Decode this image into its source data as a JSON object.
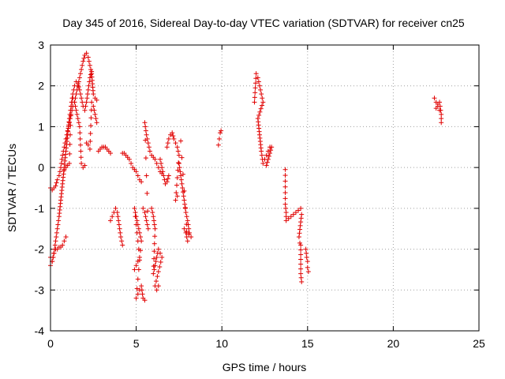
{
  "chart_data": {
    "type": "scatter",
    "title": "Day 345 of 2016, Sidereal Day-to-day VTEC variation (SDTVAR) for receiver cn25",
    "xlabel": "GPS time / hours",
    "ylabel": "SDTVAR / TECUs",
    "xlim": [
      0,
      25
    ],
    "ylim": [
      -4,
      3
    ],
    "xticks": [
      "0",
      "5",
      "10",
      "15",
      "20",
      "25"
    ],
    "yticks": [
      "-4",
      "-3",
      "-2",
      "-1",
      "0",
      "1",
      "2",
      "3"
    ],
    "marker": "+",
    "grid": true,
    "series": [
      {
        "name": "SDTVAR",
        "color": "#e00000",
        "segments": [
          [
            [
              0.0,
              -0.5
            ],
            [
              0.1,
              -0.55
            ],
            [
              0.2,
              -0.5
            ],
            [
              0.3,
              -0.45
            ],
            [
              0.4,
              -0.3
            ],
            [
              0.5,
              -0.2
            ],
            [
              0.6,
              0.0
            ],
            [
              0.7,
              0.3
            ],
            [
              0.8,
              0.5
            ],
            [
              0.9,
              0.7
            ],
            [
              1.0,
              0.9
            ],
            [
              1.1,
              1.1
            ],
            [
              1.2,
              1.3
            ],
            [
              1.3,
              1.5
            ],
            [
              1.4,
              1.6
            ],
            [
              1.5,
              1.8
            ],
            [
              1.6,
              2.0
            ],
            [
              1.7,
              2.2
            ],
            [
              1.8,
              2.4
            ],
            [
              1.9,
              2.6
            ],
            [
              2.0,
              2.75
            ],
            [
              2.1,
              2.8
            ],
            [
              2.2,
              2.7
            ],
            [
              2.3,
              2.5
            ],
            [
              2.4,
              2.3
            ],
            [
              2.5,
              1.8
            ],
            [
              2.6,
              1.7
            ],
            [
              2.7,
              1.65
            ]
          ],
          [
            [
              0.0,
              -2.2
            ],
            [
              0.1,
              -2.3
            ],
            [
              0.2,
              -2.1
            ],
            [
              0.3,
              -1.8
            ],
            [
              0.4,
              -1.5
            ],
            [
              0.5,
              -1.2
            ],
            [
              0.6,
              -0.8
            ],
            [
              0.7,
              -0.4
            ],
            [
              0.8,
              0.0
            ],
            [
              0.9,
              0.4
            ],
            [
              1.0,
              0.8
            ],
            [
              1.1,
              1.2
            ],
            [
              1.2,
              1.5
            ],
            [
              1.3,
              1.8
            ],
            [
              1.4,
              2.0
            ],
            [
              1.5,
              2.1
            ],
            [
              1.6,
              2.05
            ],
            [
              1.7,
              1.9
            ],
            [
              1.8,
              1.7
            ],
            [
              1.9,
              1.5
            ],
            [
              2.0,
              1.4
            ],
            [
              2.1,
              1.6
            ],
            [
              2.2,
              1.9
            ],
            [
              2.3,
              2.2
            ],
            [
              2.4,
              2.35
            ]
          ],
          [
            [
              0.0,
              -2.4
            ],
            [
              0.1,
              -2.3
            ],
            [
              0.2,
              -2.1
            ],
            [
              0.3,
              -2.0
            ],
            [
              0.4,
              -2.0
            ],
            [
              0.5,
              -1.95
            ],
            [
              0.6,
              -1.95
            ],
            [
              0.7,
              -1.9
            ],
            [
              0.8,
              -1.8
            ],
            [
              0.9,
              -1.7
            ]
          ],
          [
            [
              0.8,
              -0.05
            ],
            [
              0.9,
              0.0
            ],
            [
              1.0,
              0.05
            ],
            [
              1.1,
              0.1
            ],
            [
              1.2,
              1.5
            ],
            [
              1.3,
              1.7
            ],
            [
              1.4,
              1.6
            ],
            [
              1.5,
              1.4
            ],
            [
              1.6,
              1.2
            ],
            [
              1.7,
              1.0
            ],
            [
              1.8,
              0.1
            ],
            [
              1.9,
              0.0
            ],
            [
              2.0,
              0.05
            ]
          ],
          [
            [
              2.1,
              0.6
            ],
            [
              2.2,
              0.55
            ],
            [
              2.3,
              0.45
            ],
            [
              2.4,
              1.6
            ],
            [
              2.5,
              1.5
            ],
            [
              2.6,
              1.3
            ],
            [
              2.7,
              1.1
            ]
          ],
          [
            [
              2.8,
              0.4
            ],
            [
              2.9,
              0.45
            ],
            [
              3.0,
              0.5
            ],
            [
              3.1,
              0.5
            ],
            [
              3.2,
              0.5
            ],
            [
              3.3,
              0.45
            ],
            [
              3.4,
              0.4
            ],
            [
              3.5,
              0.35
            ]
          ],
          [
            [
              3.5,
              -1.3
            ],
            [
              3.6,
              -1.2
            ],
            [
              3.7,
              -1.1
            ],
            [
              3.8,
              -1.0
            ],
            [
              3.9,
              -1.1
            ],
            [
              4.0,
              -1.4
            ],
            [
              4.1,
              -1.7
            ],
            [
              4.2,
              -1.9
            ]
          ],
          [
            [
              4.2,
              0.35
            ],
            [
              4.3,
              0.35
            ],
            [
              4.4,
              0.3
            ],
            [
              4.5,
              0.25
            ],
            [
              4.6,
              0.2
            ],
            [
              4.7,
              0.1
            ],
            [
              4.8,
              0.0
            ],
            [
              4.9,
              -0.05
            ],
            [
              5.0,
              -0.1
            ],
            [
              5.1,
              -0.2
            ],
            [
              5.2,
              -0.3
            ],
            [
              5.3,
              -0.35
            ]
          ],
          [
            [
              4.9,
              -2.5
            ],
            [
              5.0,
              -2.4
            ],
            [
              5.1,
              -2.3
            ],
            [
              5.2,
              -2.2
            ],
            [
              4.9,
              -1.0
            ],
            [
              5.0,
              -1.2
            ],
            [
              5.1,
              -1.4
            ],
            [
              5.2,
              -1.6
            ],
            [
              5.3,
              -1.8
            ],
            [
              5.0,
              -3.2
            ],
            [
              5.1,
              -3.1
            ],
            [
              5.2,
              -3.0
            ],
            [
              5.3,
              -2.9
            ],
            [
              5.4,
              -3.2
            ],
            [
              5.5,
              -3.25
            ]
          ],
          [
            [
              5.4,
              -1.0
            ],
            [
              5.5,
              -1.1
            ],
            [
              5.6,
              -1.3
            ],
            [
              5.7,
              -1.5
            ],
            [
              5.5,
              1.1
            ],
            [
              5.6,
              0.8
            ],
            [
              5.7,
              0.6
            ],
            [
              5.8,
              0.4
            ],
            [
              5.9,
              0.3
            ],
            [
              6.0,
              0.25
            ],
            [
              6.1,
              0.2
            ],
            [
              6.2,
              0.1
            ],
            [
              6.3,
              0.0
            ],
            [
              6.4,
              -0.1
            ],
            [
              6.5,
              -0.15
            ]
          ],
          [
            [
              5.9,
              -1.0
            ],
            [
              6.0,
              -1.2
            ],
            [
              6.1,
              -1.5
            ],
            [
              6.0,
              -2.6
            ],
            [
              6.1,
              -2.4
            ],
            [
              6.2,
              -2.2
            ],
            [
              6.3,
              -2.0
            ],
            [
              6.4,
              -2.1
            ],
            [
              6.5,
              -2.2
            ],
            [
              6.1,
              -2.9
            ],
            [
              6.2,
              -3.0
            ],
            [
              6.3,
              -2.9
            ]
          ],
          [
            [
              6.4,
              0.2
            ],
            [
              6.5,
              0.0
            ],
            [
              6.6,
              -0.2
            ],
            [
              6.7,
              -0.4
            ],
            [
              6.8,
              -0.35
            ],
            [
              6.9,
              -0.2
            ]
          ],
          [
            [
              6.8,
              0.5
            ],
            [
              6.9,
              0.7
            ],
            [
              7.0,
              0.8
            ],
            [
              7.1,
              0.85
            ],
            [
              7.2,
              0.7
            ],
            [
              7.3,
              0.6
            ],
            [
              7.4,
              0.5
            ],
            [
              7.5,
              0.3
            ],
            [
              7.3,
              -0.8
            ],
            [
              7.4,
              -0.7
            ]
          ],
          [
            [
              7.5,
              0.1
            ],
            [
              7.6,
              -0.2
            ],
            [
              7.7,
              -0.5
            ],
            [
              7.8,
              -0.8
            ],
            [
              7.9,
              -1.1
            ],
            [
              8.0,
              -1.3
            ],
            [
              8.1,
              -1.6
            ],
            [
              8.2,
              -1.7
            ],
            [
              7.8,
              -1.5
            ],
            [
              7.9,
              -1.6
            ],
            [
              8.0,
              -1.8
            ],
            [
              7.6,
              0.65
            ]
          ],
          [
            [
              9.8,
              0.55
            ],
            [
              9.85,
              0.7
            ],
            [
              9.9,
              0.85
            ],
            [
              9.95,
              0.9
            ]
          ],
          [
            [
              11.9,
              1.6
            ],
            [
              12.0,
              2.3
            ],
            [
              12.1,
              2.2
            ],
            [
              12.2,
              2.0
            ],
            [
              12.3,
              1.8
            ],
            [
              12.4,
              1.6
            ],
            [
              12.1,
              1.2
            ],
            [
              12.2,
              0.8
            ],
            [
              12.3,
              0.4
            ],
            [
              12.4,
              0.1
            ],
            [
              12.5,
              0.2
            ],
            [
              12.6,
              0.3
            ],
            [
              12.7,
              0.4
            ],
            [
              12.8,
              0.5
            ],
            [
              12.9,
              0.5
            ],
            [
              12.6,
              0.05
            ]
          ],
          [
            [
              13.7,
              -0.05
            ],
            [
              13.7,
              -0.9
            ],
            [
              13.75,
              -1.1
            ],
            [
              13.75,
              -1.3
            ],
            [
              14.6,
              -1.0
            ],
            [
              14.65,
              -1.15
            ],
            [
              14.5,
              -1.7
            ],
            [
              14.55,
              -1.85
            ],
            [
              14.6,
              -1.9
            ],
            [
              14.6,
              -2.6
            ],
            [
              14.65,
              -2.8
            ]
          ],
          [
            [
              14.9,
              -2.0
            ],
            [
              14.95,
              -2.2
            ],
            [
              15.0,
              -2.3
            ],
            [
              15.0,
              -2.45
            ],
            [
              15.05,
              -2.55
            ]
          ],
          [
            [
              22.4,
              1.7
            ],
            [
              22.5,
              1.6
            ],
            [
              22.6,
              1.5
            ],
            [
              22.7,
              1.4
            ],
            [
              22.5,
              1.45
            ],
            [
              22.6,
              1.55
            ],
            [
              22.7,
              1.6
            ],
            [
              22.8,
              1.3
            ],
            [
              22.8,
              1.1
            ]
          ]
        ]
      }
    ]
  }
}
